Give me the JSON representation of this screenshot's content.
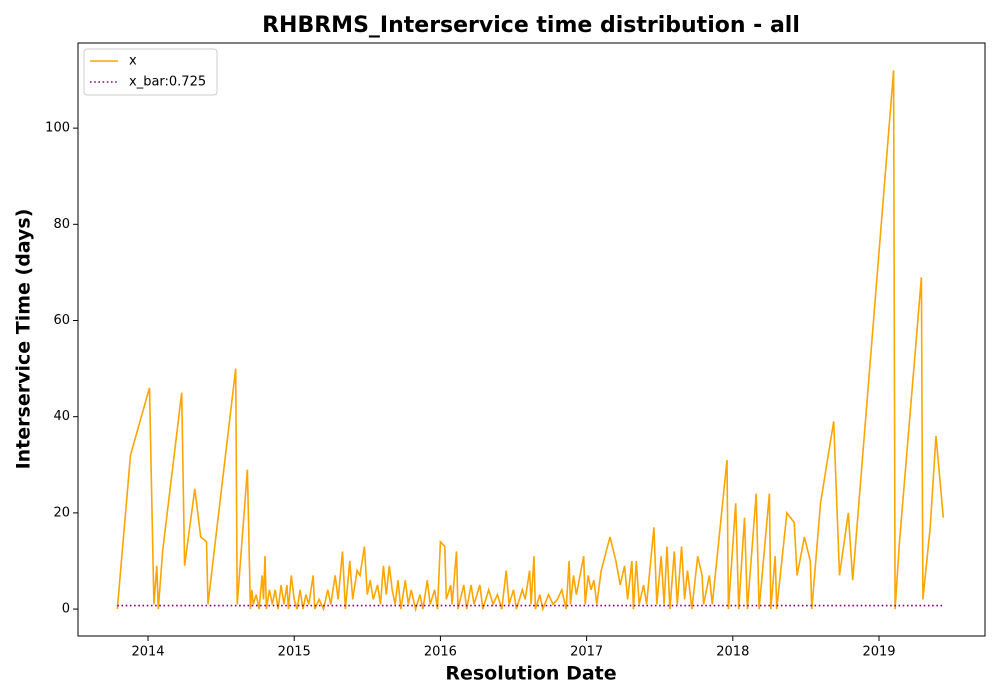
{
  "chart_data": {
    "type": "line",
    "title": "RHBRMS_Interservice time distribution - all",
    "xlabel": "Resolution Date",
    "ylabel": "Interservice Time (days)",
    "xlim": [
      2013.521,
      2019.725
    ],
    "ylim": [
      -5.6,
      117.7
    ],
    "xticks": [
      2014,
      2015,
      2016,
      2017,
      2018,
      2019
    ],
    "yticks": [
      0,
      20,
      40,
      60,
      80,
      100
    ],
    "legend": "upper left",
    "series": [
      {
        "name": "x",
        "color": "#ffa500",
        "style": "solid",
        "x": [
          2013.79,
          2013.88,
          2014.01,
          2014.04,
          2014.06,
          2014.07,
          2014.1,
          2014.23,
          2014.25,
          2014.32,
          2014.36,
          2014.4,
          2014.41,
          2014.46,
          2014.6,
          2014.61,
          2014.68,
          2014.7,
          2014.71,
          2014.72,
          2014.74,
          2014.76,
          2014.78,
          2014.79,
          2014.8,
          2014.81,
          2014.83,
          2014.85,
          2014.87,
          2014.89,
          2014.91,
          2014.93,
          2014.95,
          2014.96,
          2014.98,
          2015.0,
          2015.02,
          2015.04,
          2015.06,
          2015.08,
          2015.1,
          2015.13,
          2015.14,
          2015.17,
          2015.2,
          2015.23,
          2015.25,
          2015.28,
          2015.3,
          2015.33,
          2015.35,
          2015.38,
          2015.4,
          2015.43,
          2015.45,
          2015.48,
          2015.5,
          2015.52,
          2015.54,
          2015.57,
          2015.59,
          2015.61,
          2015.63,
          2015.65,
          2015.67,
          2015.69,
          2015.71,
          2015.73,
          2015.76,
          2015.78,
          2015.8,
          2015.83,
          2015.86,
          2015.88,
          2015.91,
          2015.93,
          2015.96,
          2015.98,
          2016.0,
          2016.03,
          2016.04,
          2016.07,
          2016.08,
          2016.11,
          2016.12,
          2016.16,
          2016.18,
          2016.21,
          2016.23,
          2016.27,
          2016.29,
          2016.33,
          2016.36,
          2016.39,
          2016.42,
          2016.45,
          2016.47,
          2016.5,
          2016.52,
          2016.56,
          2016.58,
          2016.61,
          2016.62,
          2016.64,
          2016.65,
          2016.68,
          2016.7,
          2016.74,
          2016.77,
          2016.8,
          2016.83,
          2016.86,
          2016.88,
          2016.89,
          2016.91,
          2016.93,
          2016.98,
          2016.99,
          2017.01,
          2017.03,
          2017.05,
          2017.07,
          2017.1,
          2017.16,
          2017.2,
          2017.23,
          2017.26,
          2017.28,
          2017.31,
          2017.32,
          2017.34,
          2017.36,
          2017.39,
          2017.41,
          2017.46,
          2017.48,
          2017.51,
          2017.53,
          2017.55,
          2017.57,
          2017.6,
          2017.62,
          2017.65,
          2017.67,
          2017.69,
          2017.72,
          2017.76,
          2017.79,
          2017.8,
          2017.84,
          2017.86,
          2017.96,
          2017.97,
          2018.02,
          2018.04,
          2018.08,
          2018.1,
          2018.16,
          2018.18,
          2018.25,
          2018.26,
          2018.29,
          2018.3,
          2018.37,
          2018.42,
          2018.44,
          2018.49,
          2018.53,
          2018.54,
          2018.6,
          2018.69,
          2018.73,
          2018.79,
          2018.82,
          2019.1,
          2019.11,
          2019.14,
          2019.29,
          2019.3,
          2019.35,
          2019.39,
          2019.44
        ],
        "values": [
          0,
          32,
          46,
          1,
          9,
          0,
          12,
          45,
          9,
          25,
          15,
          14,
          1,
          14,
          50,
          1,
          29,
          0,
          4,
          1,
          3,
          0,
          7,
          2,
          11,
          0,
          4,
          1,
          4,
          0,
          5,
          1,
          5,
          0,
          7,
          2,
          0,
          4,
          0,
          3,
          1,
          7,
          0,
          2,
          0,
          4,
          1,
          7,
          2,
          12,
          0,
          10,
          2,
          8,
          7,
          13,
          3,
          6,
          2,
          5,
          1,
          9,
          3,
          9,
          4,
          1,
          6,
          0,
          6,
          1,
          4,
          0,
          3,
          0,
          6,
          1,
          4,
          0,
          14,
          13,
          2,
          5,
          1,
          12,
          0,
          5,
          0,
          5,
          1,
          5,
          0,
          4,
          1,
          3,
          0,
          8,
          1,
          4,
          0,
          4,
          2,
          8,
          1,
          11,
          0,
          3,
          0,
          3,
          1,
          2,
          4,
          0,
          10,
          1,
          7,
          3,
          11,
          1,
          7,
          4,
          6,
          1,
          8,
          15,
          10,
          5,
          9,
          2,
          10,
          0,
          10,
          1,
          5,
          1,
          17,
          1,
          11,
          1,
          13,
          0,
          12,
          1,
          13,
          2,
          8,
          0,
          11,
          7,
          1,
          7,
          1,
          31,
          0,
          22,
          0,
          19,
          0,
          24,
          0,
          24,
          0,
          11,
          0,
          20,
          18,
          7,
          15,
          10,
          0,
          22,
          39,
          7,
          20,
          6,
          112,
          0,
          14,
          69,
          2,
          17,
          36,
          19
        ]
      },
      {
        "name": "x_bar:0.725",
        "color": "#800080",
        "style": "dotted",
        "x": [
          2013.79,
          2019.44
        ],
        "values": [
          0.725,
          0.725
        ]
      }
    ]
  }
}
